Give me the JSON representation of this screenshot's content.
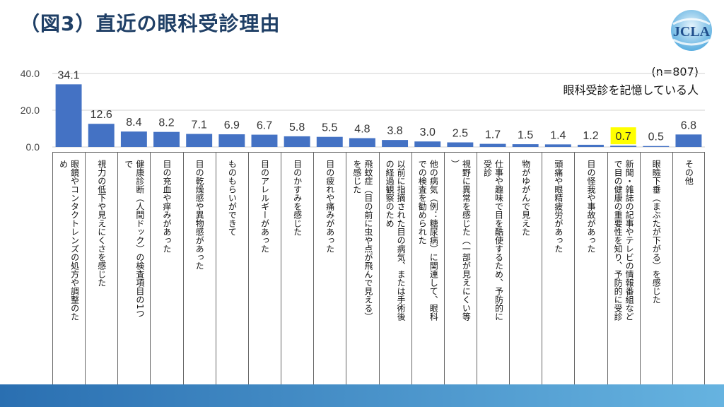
{
  "title": "（図3）直近の眼科受診理由",
  "logo_text": "JCLA",
  "note": {
    "sample": "(n=807)",
    "subject": "眼科受診を記憶している人"
  },
  "colors": {
    "bar": "#4472c4",
    "highlight": "#ffff00",
    "title": "#1f3f66",
    "band_start": "#2a6fb1",
    "band_end": "#66b3e0"
  },
  "chart_data": {
    "type": "bar",
    "categories": [
      "眼鏡やコンタクトレンズの処方や調整のため",
      "視力の低下や見えにくさを感じた",
      "健康診断（人間ドック）の検査項目の1つで",
      "目の充血や痒みがあった",
      "目の乾燥感や異物感があった",
      "ものもらいができて",
      "目のアレルギーがあった",
      "目のかすみを感じた",
      "目の疲れや痛みがあった",
      "飛蚊症（目の前に虫や点が飛んで見える）を感じた",
      "以前に指摘された目の病気、または手術後の経過観察のため",
      "他の病気（例：糖尿病）に関連して、眼科での検査を勧められた",
      "視野に異常を感じた（一部が見えにくい等）",
      "仕事や趣味で目を酷使するため、予防的に受診",
      "物がゆがんで見えた",
      "頭痛や眼精疲労があった",
      "目の怪我や事故があった",
      "新聞・雑誌の記事やテレビの情報番組などで目の健康の重要性を知り、予防的に受診",
      "眼瞼下垂（まぶたが下がる）を感じた",
      "その他"
    ],
    "values": [
      34.1,
      12.6,
      8.4,
      8.2,
      7.1,
      6.9,
      6.7,
      5.8,
      5.5,
      4.8,
      3.8,
      3.0,
      2.5,
      1.7,
      1.5,
      1.4,
      1.2,
      0.7,
      0.5,
      6.8
    ],
    "value_labels": [
      "34.1",
      "12.6",
      "8.4",
      "8.2",
      "7.1",
      "6.9",
      "6.7",
      "5.8",
      "5.5",
      "4.8",
      "3.8",
      "3.0",
      "2.5",
      "1.7",
      "1.5",
      "1.4",
      "1.2",
      "0.7",
      "0.5",
      "6.8"
    ],
    "highlight_index": 17,
    "yticks": [
      "0.0",
      "20.0",
      "40.0"
    ],
    "ytick_values": [
      0,
      20,
      40
    ],
    "ylim": [
      0,
      40
    ],
    "grid": true
  }
}
